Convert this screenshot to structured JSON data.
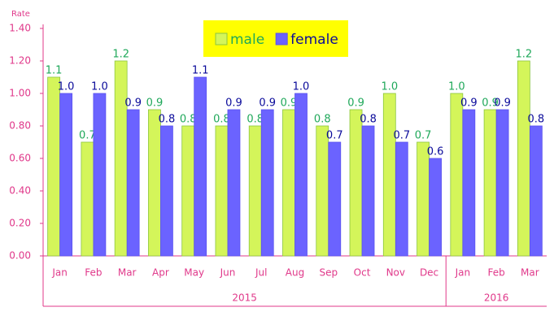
{
  "chart_data": {
    "type": "bar",
    "y_axis_label": "Rate",
    "categories": [
      "Jan",
      "Feb",
      "Mar",
      "Apr",
      "May",
      "Jun",
      "Jul",
      "Aug",
      "Sep",
      "Oct",
      "Nov",
      "Dec",
      "Jan",
      "Feb",
      "Mar"
    ],
    "groups": [
      {
        "label": "2015",
        "count": 12
      },
      {
        "label": "2016",
        "count": 3
      }
    ],
    "series": [
      {
        "name": "male",
        "color": "#d4f55a",
        "label_color": "#1fa85a",
        "values": [
          1.1,
          0.7,
          1.2,
          0.9,
          0.8,
          0.8,
          0.8,
          0.9,
          0.8,
          0.9,
          1.0,
          0.7,
          1.0,
          0.9,
          1.2
        ],
        "value_labels": [
          "1.1",
          "0.7",
          "1.2",
          "0.9",
          "0.8",
          "0.8",
          "0.8",
          "0.9",
          "0.8",
          "0.9",
          "1.0",
          "0.7",
          "1.0",
          "0.9",
          "1.2"
        ]
      },
      {
        "name": "female",
        "color": "#6b63ff",
        "label_color": "#0a0a9a",
        "values": [
          1.0,
          1.0,
          0.9,
          0.8,
          1.1,
          0.9,
          0.9,
          1.0,
          0.7,
          0.8,
          0.7,
          0.6,
          0.9,
          0.9,
          0.8
        ],
        "value_labels": [
          "1.0",
          "1.0",
          "0.9",
          "0.8",
          "1.1",
          "0.9",
          "0.9",
          "1.0",
          "0.7",
          "0.8",
          "0.7",
          "0.6",
          "0.9",
          "0.9",
          "0.8"
        ]
      }
    ],
    "ylim": [
      0,
      1.4
    ],
    "yticks": [
      {
        "value": 0,
        "label": "0.00"
      },
      {
        "value": 0.2,
        "label": "0.20"
      },
      {
        "value": 0.4,
        "label": "0.40"
      },
      {
        "value": 0.6,
        "label": "0.60"
      },
      {
        "value": 0.8,
        "label": "0.80"
      },
      {
        "value": 1.0,
        "label": "1.00"
      },
      {
        "value": 1.2,
        "label": "1.20"
      },
      {
        "value": 1.4,
        "label": "1.40"
      }
    ],
    "legend": "top"
  }
}
